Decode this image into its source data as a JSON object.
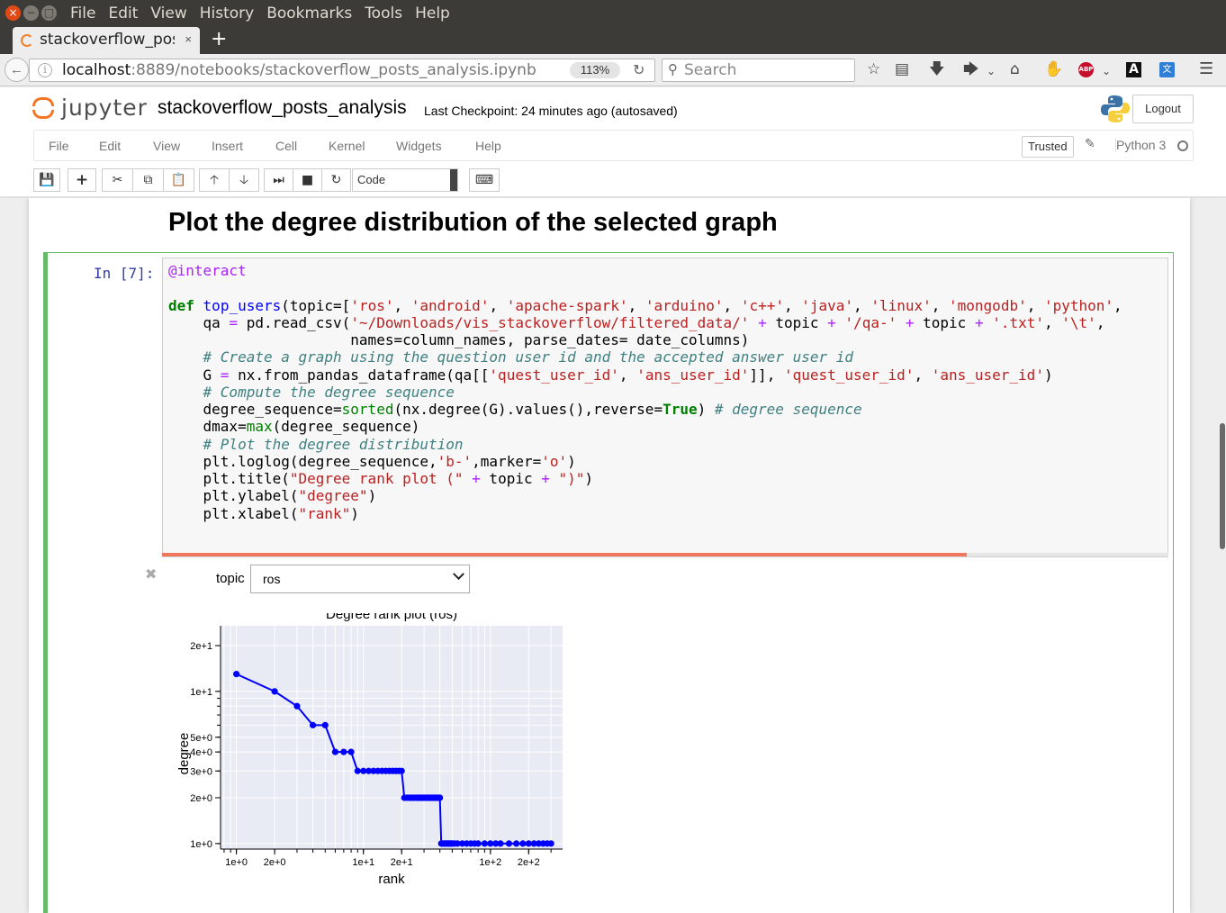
{
  "window": {
    "close_glyph": "×",
    "min_glyph": "−",
    "max_glyph": "□",
    "menu": [
      "File",
      "Edit",
      "View",
      "History",
      "Bookmarks",
      "Tools",
      "Help"
    ]
  },
  "browser": {
    "tab_title": "stackoverflow_posts_analysis",
    "tab_close": "×",
    "new_tab": "+",
    "url_host": "localhost",
    "url_rest": ":8889/notebooks/stackoverflow_posts_analysis.ipynb",
    "zoom": "113%",
    "search_placeholder": "Search"
  },
  "jupyter": {
    "logo_text": "jupyter",
    "notebook_name": "stackoverflow_posts_analysis",
    "checkpoint": "Last Checkpoint: 24 minutes ago (autosaved)",
    "logout": "Logout",
    "menus": [
      "File",
      "Edit",
      "View",
      "Insert",
      "Cell",
      "Kernel",
      "Widgets",
      "Help"
    ],
    "trusted": "Trusted",
    "kernel": "Python 3",
    "cell_type": "Code"
  },
  "notebook": {
    "heading": "Plot the degree distribution of the selected graph",
    "prompt": "In [7]:",
    "code_lines": [
      "@interact",
      "",
      "def top_users(topic=['ros', 'android', 'apache-spark', 'arduino', 'c++', 'java', 'linux', 'mongodb', 'python',",
      "    qa = pd.read_csv('~/Downloads/vis_stackoverflow/filtered_data/' + topic + '/qa-' + topic + '.txt', '\\t',",
      "                     names=column_names, parse_dates= date_columns)",
      "    # Create a graph using the question user id and the accepted answer user id",
      "    G = nx.from_pandas_dataframe(qa[['quest_user_id', 'ans_user_id']], 'quest_user_id', 'ans_user_id')",
      "    # Compute the degree sequence",
      "    degree_sequence=sorted(nx.degree(G).values(),reverse=True) # degree sequence",
      "    dmax=max(degree_sequence)",
      "    # Plot the degree distribution",
      "    plt.loglog(degree_sequence,'b-',marker='o')",
      "    plt.title(\"Degree rank plot (\" + topic + \")\")",
      "    plt.ylabel(\"degree\")",
      "    plt.xlabel(\"rank\")"
    ],
    "progress": 0.8,
    "widget_label": "topic",
    "widget_value": "ros"
  },
  "chart_data": {
    "type": "line",
    "title": "Degree rank plot (ros)",
    "xlabel": "rank",
    "ylabel": "degree",
    "xscale": "log",
    "yscale": "log",
    "xlim": [
      0.75,
      370
    ],
    "ylim": [
      0.92,
      27
    ],
    "xticks": [
      1,
      2,
      10,
      20,
      100,
      200
    ],
    "xtick_labels": [
      "1e+0",
      "2e+0",
      "1e+1",
      "2e+1",
      "1e+2",
      "2e+2"
    ],
    "yticks": [
      1,
      2,
      3,
      4,
      5,
      10,
      20
    ],
    "ytick_labels": [
      "1e+0",
      "2e+0",
      "3e+0",
      "4e+0",
      "5e+0",
      "1e+1",
      "2e+1"
    ],
    "grid": true,
    "series": [
      {
        "color": "#0000ff",
        "marker": "o",
        "x": [
          1,
          2,
          3,
          4,
          5,
          6,
          7,
          8,
          9,
          10,
          11,
          12,
          13,
          14,
          15,
          16,
          17,
          18,
          19,
          20,
          21,
          22,
          23,
          24,
          25,
          26,
          27,
          28,
          29,
          30,
          31,
          32,
          33,
          34,
          35,
          36,
          37,
          38,
          39,
          40,
          41,
          42,
          43,
          44,
          45,
          46,
          47,
          48,
          49,
          50,
          52,
          55,
          60,
          65,
          70,
          75,
          80,
          90,
          100,
          110,
          120,
          140,
          160,
          180,
          200,
          220,
          240,
          260,
          280,
          300
        ],
        "y": [
          13,
          10,
          8,
          6,
          6,
          4,
          4,
          4,
          3,
          3,
          3,
          3,
          3,
          3,
          3,
          3,
          3,
          3,
          3,
          3,
          2,
          2,
          2,
          2,
          2,
          2,
          2,
          2,
          2,
          2,
          2,
          2,
          2,
          2,
          2,
          2,
          2,
          2,
          2,
          2,
          1,
          1,
          1,
          1,
          1,
          1,
          1,
          1,
          1,
          1,
          1,
          1,
          1,
          1,
          1,
          1,
          1,
          1,
          1,
          1,
          1,
          1,
          1,
          1,
          1,
          1,
          1,
          1,
          1,
          1
        ]
      }
    ]
  }
}
